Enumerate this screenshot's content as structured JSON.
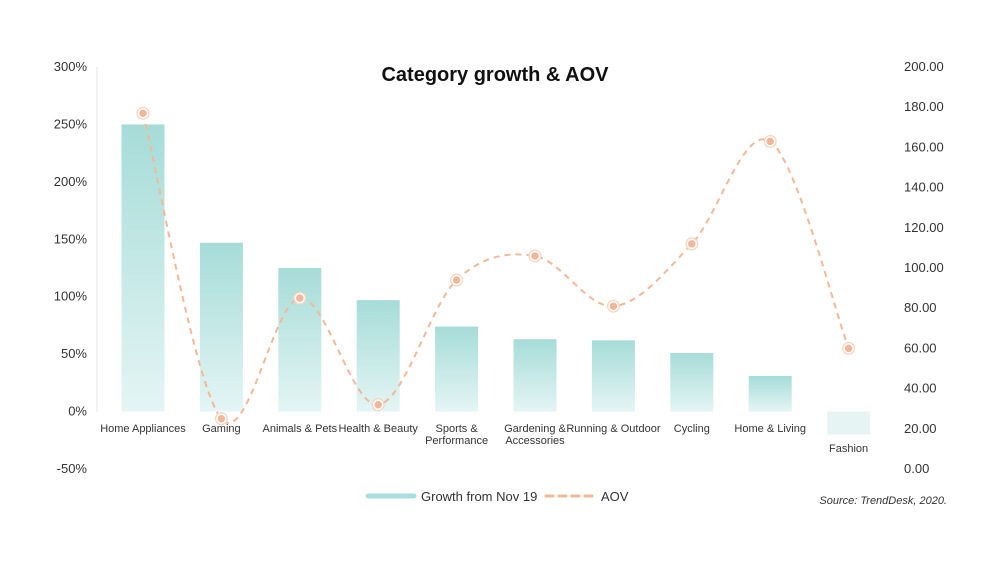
{
  "chart_data": {
    "type": "bar",
    "title": "Category growth & AOV",
    "categories": [
      "Home Appliances",
      "Gaming",
      "Animals & Pets",
      "Health & Beauty",
      "Sports & Performance",
      "Gardening & Accessories",
      "Running & Outdoor",
      "Cycling",
      "Home & Living",
      "Fashion"
    ],
    "series": [
      {
        "name": "Growth from Nov 19",
        "type": "bar",
        "axis": "left",
        "unit": "%",
        "values": [
          250,
          147,
          125,
          97,
          74,
          63,
          62,
          51,
          31,
          -20
        ]
      },
      {
        "name": "AOV",
        "type": "line",
        "style": "dashed",
        "axis": "right",
        "values": [
          177,
          25,
          85,
          32,
          94,
          106,
          81,
          112,
          163,
          60
        ]
      }
    ],
    "y_left": {
      "ylim": [
        -50,
        300
      ],
      "ticks": [
        -50,
        0,
        50,
        100,
        150,
        200,
        250,
        300
      ],
      "tick_labels": [
        "-50%",
        "0%",
        "50%",
        "100%",
        "150%",
        "200%",
        "250%",
        "300%"
      ]
    },
    "y_right": {
      "ylim": [
        0,
        200
      ],
      "ticks": [
        0,
        20,
        40,
        60,
        80,
        100,
        120,
        140,
        160,
        180,
        200
      ],
      "tick_labels": [
        "0.00",
        "20.00",
        "40.00",
        "60.00",
        "80.00",
        "100.00",
        "120.00",
        "140.00",
        "160.00",
        "180.00",
        "200.00"
      ]
    },
    "legend": {
      "placement": "bottom-center",
      "entries": [
        "Growth from Nov 19",
        "AOV"
      ]
    },
    "source": "Source: TrendDesk, 2020.",
    "grid": false,
    "colors": {
      "bar": "#a8dedb",
      "line": "#f4b896",
      "marker_fill": "#f0b79a",
      "marker_stroke": "#ffffff"
    }
  }
}
